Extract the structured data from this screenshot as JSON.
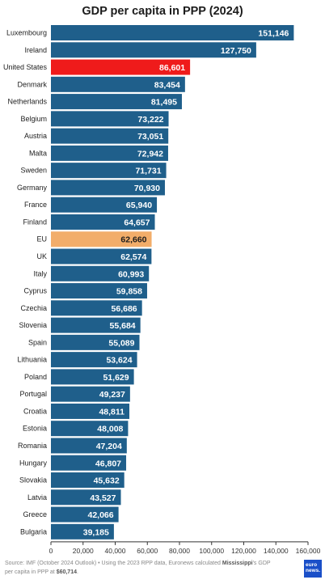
{
  "chart_data": {
    "type": "bar",
    "orientation": "horizontal",
    "title": "GDP per capita in PPP (2024)",
    "categories": [
      "Luxembourg",
      "Ireland",
      "United States",
      "Denmark",
      "Netherlands",
      "Belgium",
      "Austria",
      "Malta",
      "Sweden",
      "Germany",
      "France",
      "Finland",
      "EU",
      "UK",
      "Italy",
      "Cyprus",
      "Czechia",
      "Slovenia",
      "Spain",
      "Lithuania",
      "Poland",
      "Portugal",
      "Croatia",
      "Estonia",
      "Romania",
      "Hungary",
      "Slovakia",
      "Latvia",
      "Greece",
      "Bulgaria"
    ],
    "values": [
      151146,
      127750,
      86601,
      83454,
      81495,
      73222,
      73051,
      72942,
      71731,
      70930,
      65940,
      64657,
      62660,
      62574,
      60993,
      59858,
      56686,
      55684,
      55089,
      53624,
      51629,
      49237,
      48811,
      48008,
      47204,
      46807,
      45632,
      43527,
      42066,
      39185
    ],
    "value_labels": [
      "151,146",
      "127,750",
      "86,601",
      "83,454",
      "81,495",
      "73,222",
      "73,051",
      "72,942",
      "71,731",
      "70,930",
      "65,940",
      "64,657",
      "62,660",
      "62,574",
      "60,993",
      "59,858",
      "56,686",
      "55,684",
      "55,089",
      "53,624",
      "51,629",
      "49,237",
      "48,811",
      "48,008",
      "47,204",
      "46,807",
      "45,632",
      "43,527",
      "42,066",
      "39,185"
    ],
    "highlight": {
      "United States": "#ef1b1b",
      "EU": "#f2ad6a"
    },
    "default_color": "#1f5f8b",
    "xlim": [
      0,
      160000
    ],
    "x_ticks": [
      0,
      20000,
      40000,
      60000,
      80000,
      100000,
      120000,
      140000,
      160000
    ],
    "x_tick_labels": [
      "0",
      "20,000",
      "40,000",
      "60,000",
      "80,000",
      "100,000",
      "120,000",
      "140,000",
      "160,000"
    ]
  },
  "source": {
    "prefix": "Source: IMF (October 2024 Outlook) • Using the 2023 RPP data, Euronews calculated ",
    "bold1": "Mississippi",
    "middle": "'s GDP per capita in PPP at ",
    "bold2": "$60,714",
    "suffix": "."
  },
  "logo": {
    "line1": "euro",
    "line2": "news."
  }
}
